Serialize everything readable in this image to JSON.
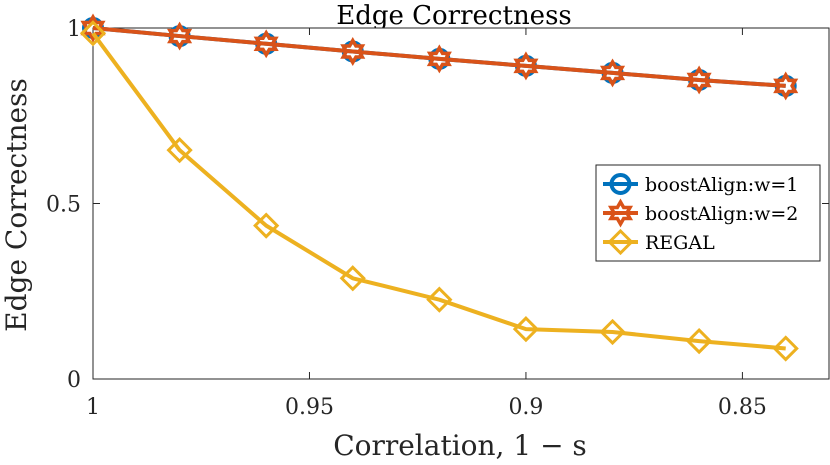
{
  "chart_data": {
    "type": "line",
    "title": "Edge Correctness",
    "xlabel": "Correlation, 1 − s",
    "ylabel": "Edge Correctness",
    "x": [
      1,
      0.98,
      0.96,
      0.94,
      0.92,
      0.9,
      0.88,
      0.86,
      0.84
    ],
    "xlim": [
      1.0,
      0.83
    ],
    "ylim": [
      0,
      1
    ],
    "x_ticks": [
      1,
      0.95,
      0.9,
      0.85
    ],
    "x_tick_labels": [
      "1",
      "0.95",
      "0.9",
      "0.85"
    ],
    "y_ticks": [
      0,
      0.5,
      1
    ],
    "y_tick_labels": [
      "0",
      "0.5",
      "1"
    ],
    "grid": false,
    "legend_position": "right",
    "series": [
      {
        "name": "boostAlign:w=1",
        "color": "#0072BD",
        "marker": "circle",
        "values": [
          1.0,
          0.977,
          0.955,
          0.933,
          0.912,
          0.892,
          0.872,
          0.852,
          0.835
        ]
      },
      {
        "name": "boostAlign:w=2",
        "color": "#D95319",
        "marker": "hexagram",
        "values": [
          1.0,
          0.977,
          0.955,
          0.933,
          0.912,
          0.892,
          0.872,
          0.852,
          0.835
        ]
      },
      {
        "name": "REGAL",
        "color": "#EDB120",
        "marker": "diamond",
        "values": [
          0.985,
          0.652,
          0.437,
          0.287,
          0.226,
          0.142,
          0.134,
          0.108,
          0.087
        ]
      }
    ]
  }
}
